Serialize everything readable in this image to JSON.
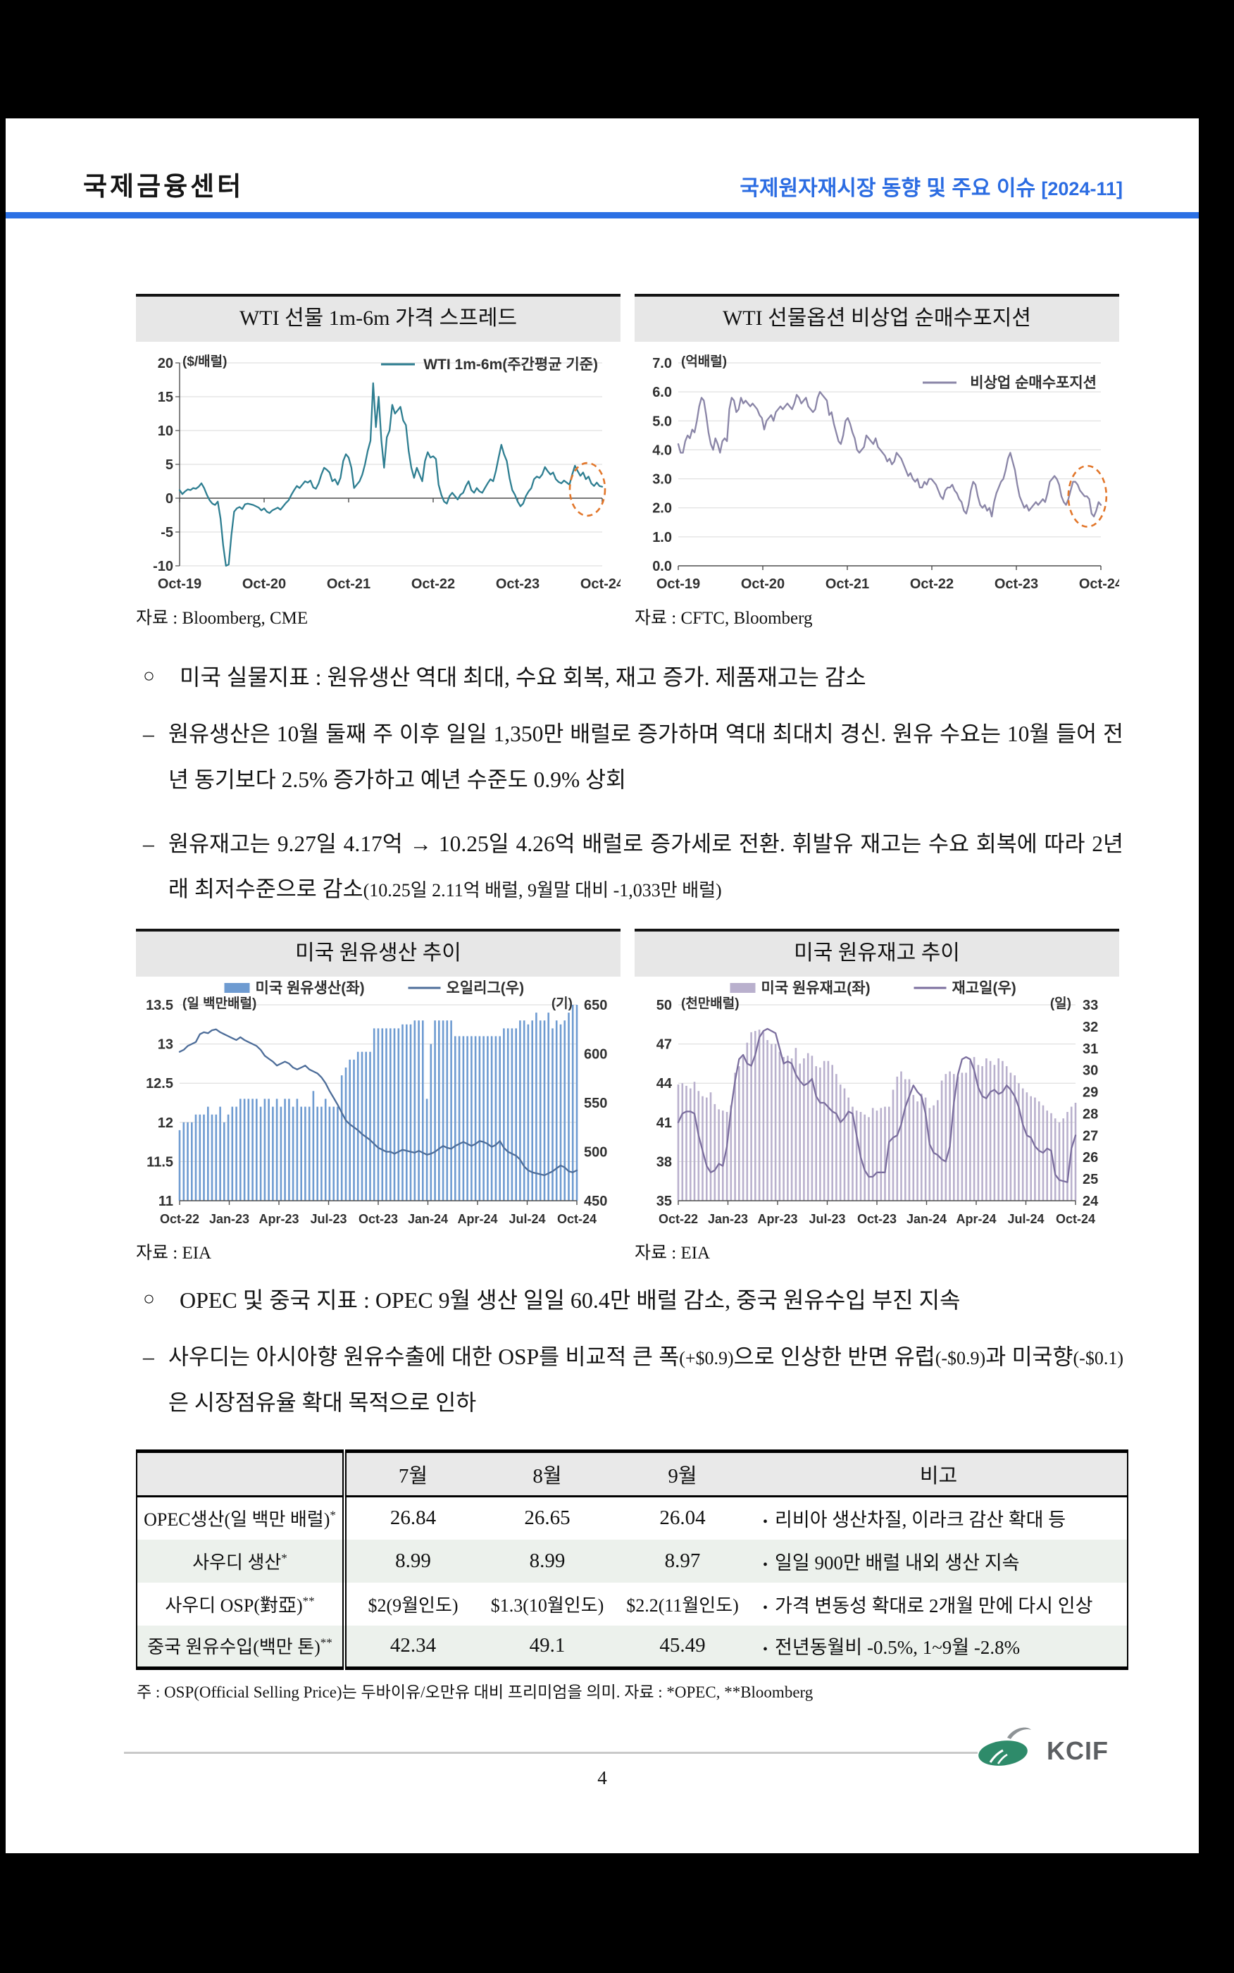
{
  "header": {
    "org": "국제금융센터",
    "doc_title": "국제원자재시장 동향 및 주요 이슈",
    "doc_issue": "[2024-11]"
  },
  "colors": {
    "accent_blue": "#2b70e4",
    "wti_line": "#2e7e91",
    "netlong_line": "#8a85a7",
    "production_bar": "#6e9bd1",
    "rig_line": "#4d6d99",
    "inventory_bar": "#b9b0cd",
    "days_line": "#7b6e9e",
    "annotation_orange": "#e2762a",
    "title_band_gray": "#e7e7e7",
    "table_alt_row": "#ecf1ec"
  },
  "markers": {
    "circle": "○",
    "dash": "–",
    "note_bullet": "•"
  },
  "sections": {
    "us": {
      "bullet": "미국 실물지표 : 원유생산 역대 최대, 수요 회복, 재고 증가. 제품재고는 감소",
      "items": [
        {
          "segments": [
            [
              "원유생산은 10월 둘째 주 이후 일일 1,350만 배럴로 증가하며 역대 최대치 경신. 원유 수요는 10월 들어 전년 동기보다 2.5% 증가하고 예년 수준도 0.9% 상회",
              "n"
            ]
          ]
        },
        {
          "segments": [
            [
              "원유재고는 9.27일 4.17억 → 10.25일 4.26억 배럴로 증가세로 전환. 휘발유 재고는 수요 회복에 따라 2년래 최저수준으로 감소",
              "n"
            ],
            [
              "(10.25일 2.11억 배럴, 9월말 대비 -1,033만 배럴)",
              "s"
            ]
          ]
        }
      ]
    },
    "opec": {
      "bullet": "OPEC 및 중국 지표 : OPEC 9월 생산 일일 60.4만 배럴 감소, 중국 원유수입 부진 지속",
      "items": [
        {
          "segments": [
            [
              "사우디는 아시아향 원유수출에 대한 OSP를 비교적 큰 폭",
              "n"
            ],
            [
              "(+$0.9)",
              "s"
            ],
            [
              "으로 인상한 반면 유럽",
              "n"
            ],
            [
              "(-$0.9)",
              "s"
            ],
            [
              "과 미국향",
              "n"
            ],
            [
              "(-$0.1)",
              "s"
            ],
            [
              "은 시장점유율 확대 목적으로 인하",
              "n"
            ]
          ]
        }
      ]
    }
  },
  "table": {
    "headers": [
      "",
      "7월",
      "8월",
      "9월",
      "비고"
    ],
    "rows": [
      {
        "label": "OPEC생산(일 백만 배럴)",
        "sup": "*",
        "values": [
          "26.84",
          "26.65",
          "26.04"
        ],
        "note": "리비아 생산차질, 이라크 감산 확대 등"
      },
      {
        "label": "사우디 생산",
        "sup": "*",
        "values": [
          "8.99",
          "8.99",
          "8.97"
        ],
        "note": "일일 900만 배럴 내외 생산 지속"
      },
      {
        "label": "사우디 OSP(對亞)",
        "sup": "**",
        "values": [
          "$2(9월인도)",
          "$1.3(10월인도)",
          "$2.2(11월인도)"
        ],
        "note": "가격 변동성 확대로 2개월 만에 다시 인상"
      },
      {
        "label": "중국 원유수입(백만 톤)",
        "sup": "**",
        "values": [
          "42.34",
          "49.1",
          "45.49"
        ],
        "note": "전년동월비 -0.5%, 1~9월 -2.8%"
      }
    ]
  },
  "footnote": "주 : OSP(Official Selling Price)는 두바이유/오만유 대비 프리미엄을 의미. 자료 : *OPEC, **Bloomberg",
  "footer": {
    "logo_text": "KCIF",
    "page_number": "4"
  },
  "chart_data": [
    {
      "type": "line",
      "name": "wti-spread-chart",
      "title": "WTI 선물 1m-6m 가격 스프레드",
      "source": "자료 : Bloomberg, CME",
      "unit_left": "($/배럴)",
      "y_left": {
        "min": -10,
        "max": 20,
        "ticks": [
          "20",
          "15",
          "10",
          "5",
          "0",
          "-5",
          "-10"
        ]
      },
      "x_ticks": [
        "Oct-19",
        "Oct-20",
        "Oct-21",
        "Oct-22",
        "Oct-23",
        "Oct-24"
      ],
      "zero_axis": true,
      "left_axis_line": true,
      "grid": true,
      "legend": {
        "label": "WTI 1m-6m(주간평균 기준)",
        "color": "#2e7e91",
        "y_offset": 2
      },
      "series": {
        "name": "WTI 1m-6m(주간평균 기준)",
        "color": "#2e7e91",
        "values": [
          1.2,
          0.6,
          1.0,
          1.3,
          1.2,
          1.5,
          1.4,
          1.7,
          2.2,
          1.5,
          0.5,
          -0.3,
          -0.8,
          -1.0,
          -0.5,
          -3.0,
          -7.0,
          -10.3,
          -9.8,
          -5.5,
          -2.0,
          -1.5,
          -1.3,
          -1.6,
          -0.9,
          -0.8,
          -0.9,
          -1.0,
          -1.2,
          -1.4,
          -1.8,
          -1.5,
          -2.0,
          -2.2,
          -1.8,
          -1.6,
          -1.4,
          -1.7,
          -1.2,
          -0.7,
          -0.3,
          0.5,
          1.2,
          1.8,
          1.5,
          2.0,
          2.5,
          2.3,
          2.6,
          1.6,
          1.4,
          2.2,
          3.5,
          4.5,
          4.2,
          3.8,
          2.5,
          2.8,
          2.0,
          3.0,
          5.5,
          6.5,
          6.0,
          4.5,
          1.5,
          2.0,
          2.5,
          3.5,
          5.0,
          7.0,
          8.5,
          17.0,
          10.5,
          15.0,
          8.5,
          4.5,
          9.0,
          10.0,
          13.8,
          12.5,
          13.0,
          13.5,
          11.5,
          10.8,
          7.0,
          4.5,
          3.0,
          4.5,
          3.5,
          2.5,
          5.5,
          6.8,
          6.0,
          6.2,
          5.8,
          2.0,
          0.5,
          -0.5,
          -0.8,
          0.3,
          0.8,
          0.3,
          -0.2,
          0.5,
          0.8,
          1.8,
          2.5,
          1.2,
          0.8,
          1.5,
          1.0,
          0.8,
          1.5,
          2.2,
          2.8,
          2.5,
          4.0,
          6.0,
          7.9,
          6.5,
          5.5,
          3.0,
          1.2,
          0.5,
          -0.5,
          -1.2,
          -0.8,
          0.3,
          1.0,
          1.5,
          2.8,
          3.2,
          3.0,
          3.5,
          4.6,
          4.0,
          3.5,
          3.8,
          2.8,
          2.4,
          2.2,
          2.6,
          2.3,
          2.0,
          3.5,
          4.8,
          4.0,
          3.3,
          3.8,
          2.8,
          3.2,
          2.2,
          1.8,
          2.3,
          1.8,
          1.7
        ]
      },
      "ellipse": {
        "cx_frac": 0.965,
        "cy_val": 1.3,
        "rx": 25,
        "ry_val": 3.9,
        "color": "#e2762a"
      }
    },
    {
      "type": "line",
      "name": "wti-netlong-chart",
      "title": "WTI 선물옵션 비상업 순매수포지션",
      "source": "자료 : CFTC, Bloomberg",
      "unit_left": "(억배럴)",
      "y_left": {
        "min": 0,
        "max": 7,
        "ticks": [
          "7.0",
          "6.0",
          "5.0",
          "4.0",
          "3.0",
          "2.0",
          "1.0",
          "0.0"
        ]
      },
      "x_ticks": [
        "Oct-19",
        "Oct-20",
        "Oct-21",
        "Oct-22",
        "Oct-23",
        "Oct-24"
      ],
      "bottom_axis": true,
      "grid": true,
      "legend": {
        "label": "비상업 순매수포지션",
        "color": "#8a85a7",
        "y_offset": 28
      },
      "series": {
        "name": "비상업 순매수포지션",
        "color": "#8a85a7",
        "values": [
          4.2,
          3.9,
          3.9,
          4.3,
          4.5,
          4.4,
          4.7,
          4.6,
          5.0,
          5.5,
          5.8,
          5.7,
          5.2,
          4.6,
          4.2,
          4.0,
          4.4,
          4.2,
          3.9,
          4.3,
          4.4,
          4.3,
          5.4,
          5.8,
          5.7,
          5.3,
          5.4,
          5.8,
          5.6,
          5.7,
          5.6,
          5.5,
          5.6,
          5.5,
          5.4,
          5.2,
          5.1,
          4.7,
          5.0,
          5.1,
          5.2,
          5.0,
          5.3,
          5.4,
          5.5,
          5.4,
          5.5,
          5.6,
          5.5,
          5.4,
          5.6,
          5.9,
          5.8,
          5.6,
          5.7,
          5.8,
          5.5,
          5.4,
          5.3,
          5.4,
          5.8,
          6.0,
          5.9,
          5.8,
          5.7,
          5.2,
          5.3,
          4.9,
          4.6,
          4.3,
          4.2,
          4.5,
          5.0,
          5.1,
          4.9,
          4.6,
          4.4,
          4.0,
          3.9,
          4.0,
          4.1,
          4.5,
          4.4,
          4.3,
          4.2,
          4.4,
          4.1,
          4.0,
          3.9,
          3.8,
          3.6,
          3.7,
          3.5,
          3.6,
          3.9,
          3.8,
          3.7,
          3.5,
          3.3,
          3.1,
          3.2,
          3.0,
          2.9,
          3.0,
          2.7,
          2.7,
          2.9,
          2.8,
          3.0,
          3.0,
          2.9,
          2.8,
          2.6,
          2.4,
          2.3,
          2.6,
          2.7,
          2.7,
          2.8,
          2.6,
          2.5,
          2.3,
          2.2,
          1.9,
          1.8,
          2.1,
          2.6,
          2.9,
          2.8,
          2.4,
          2.1,
          2.0,
          2.1,
          1.9,
          2.0,
          1.7,
          2.2,
          2.5,
          2.7,
          2.9,
          3.0,
          3.3,
          3.7,
          3.9,
          3.6,
          3.3,
          2.8,
          2.4,
          2.2,
          2.0,
          2.1,
          1.9,
          2.0,
          2.1,
          2.2,
          2.1,
          2.2,
          2.3,
          2.2,
          2.5,
          2.9,
          3.0,
          3.1,
          3.0,
          2.8,
          2.4,
          2.2,
          2.1,
          2.3,
          2.6,
          2.9,
          2.9,
          2.8,
          2.6,
          2.5,
          2.4,
          2.4,
          2.3,
          1.8,
          1.7,
          1.9,
          2.2,
          2.1
        ]
      },
      "ellipse": {
        "cx_frac": 0.968,
        "cy_val": 2.4,
        "rx": 27,
        "ry_val": 1.05,
        "color": "#e2762a"
      }
    },
    {
      "type": "bar+line",
      "name": "us-production-chart",
      "title": "미국 원유생산 추이",
      "source": "자료 : EIA",
      "unit_left": "(일 백만배럴)",
      "unit_right": "(기)",
      "y_left": {
        "min": 11,
        "max": 13.5,
        "ticks": [
          "13.5",
          "13",
          "12.5",
          "12",
          "11.5",
          "11"
        ]
      },
      "y_right": {
        "min": 450,
        "max": 650,
        "ticks": [
          "650",
          "600",
          "550",
          "500",
          "450"
        ]
      },
      "x_ticks": [
        "Oct-22",
        "Jan-23",
        "Apr-23",
        "Jul-23",
        "Oct-23",
        "Jan-24",
        "Apr-24",
        "Jul-24",
        "Oct-24"
      ],
      "bottom_axis": true,
      "grid": true,
      "bars": {
        "name": "미국 원유생산(좌)",
        "color": "#6e9bd1",
        "values": [
          11.9,
          12.0,
          12.0,
          12.0,
          12.1,
          12.1,
          12.1,
          12.2,
          12.1,
          12.1,
          12.2,
          12.0,
          12.1,
          12.2,
          12.2,
          12.3,
          12.3,
          12.3,
          12.3,
          12.3,
          12.2,
          12.3,
          12.3,
          12.2,
          12.3,
          12.2,
          12.3,
          12.3,
          12.2,
          12.3,
          12.2,
          12.2,
          12.2,
          12.4,
          12.2,
          12.2,
          12.3,
          12.2,
          12.2,
          12.2,
          12.6,
          12.7,
          12.8,
          12.8,
          12.9,
          12.9,
          12.9,
          12.9,
          13.2,
          13.2,
          13.2,
          13.2,
          13.2,
          13.2,
          13.2,
          13.25,
          13.25,
          13.25,
          13.3,
          13.3,
          13.3,
          12.3,
          13.0,
          13.3,
          13.3,
          13.3,
          13.3,
          13.3,
          13.1,
          13.1,
          13.1,
          13.1,
          13.1,
          13.1,
          13.1,
          13.1,
          13.1,
          13.1,
          13.1,
          13.1,
          13.2,
          13.2,
          13.2,
          13.2,
          13.3,
          13.3,
          13.25,
          13.3,
          13.4,
          13.3,
          13.3,
          13.4,
          13.2,
          13.3,
          13.25,
          13.3,
          13.4,
          13.5,
          13.5
        ]
      },
      "line": {
        "name": "오일리그(우)",
        "color": "#4d6d99",
        "values": [
          602,
          604,
          608,
          610,
          612,
          620,
          622,
          621,
          624,
          625,
          622,
          620,
          618,
          616,
          614,
          617,
          614,
          612,
          610,
          608,
          604,
          598,
          595,
          592,
          588,
          590,
          592,
          590,
          586,
          584,
          586,
          588,
          584,
          582,
          580,
          576,
          570,
          562,
          555,
          548,
          540,
          532,
          528,
          525,
          522,
          518,
          515,
          512,
          508,
          504,
          502,
          500,
          500,
          498,
          500,
          502,
          501,
          500,
          499,
          501,
          499,
          497,
          498,
          500,
          503,
          506,
          504,
          503,
          506,
          508,
          510,
          508,
          506,
          508,
          511,
          510,
          508,
          505,
          507,
          511,
          504,
          500,
          498,
          496,
          492,
          485,
          481,
          479,
          478,
          477,
          476,
          478,
          480,
          483,
          486,
          484,
          480,
          479,
          481
        ]
      }
    },
    {
      "type": "bar+line",
      "name": "us-inventory-chart",
      "title": "미국 원유재고 추이",
      "source": "자료 : EIA",
      "unit_left": "(천만배럴)",
      "unit_right": "(일)",
      "y_left": {
        "min": 35,
        "max": 50,
        "ticks": [
          "50",
          "47",
          "44",
          "41",
          "38",
          "35"
        ]
      },
      "y_right": {
        "min": 24,
        "max": 33,
        "ticks": [
          "33",
          "32",
          "31",
          "30",
          "29",
          "28",
          "27",
          "26",
          "25",
          "24"
        ]
      },
      "x_ticks": [
        "Oct-22",
        "Jan-23",
        "Apr-23",
        "Jul-23",
        "Oct-23",
        "Jan-24",
        "Apr-24",
        "Jul-24",
        "Oct-24"
      ],
      "bottom_axis": true,
      "grid": true,
      "bars": {
        "name": "미국 원유재고(좌)",
        "color": "#b9b0cd",
        "values": [
          43.9,
          44.0,
          43.8,
          43.6,
          44.1,
          43.4,
          43.0,
          42.9,
          43.3,
          42.4,
          42.0,
          41.9,
          41.8,
          42.3,
          44.8,
          45.3,
          46.0,
          47.1,
          47.9,
          48.0,
          48.1,
          47.9,
          47.3,
          47.0,
          47.0,
          46.4,
          46.0,
          46.1,
          45.9,
          46.7,
          45.5,
          45.9,
          46.3,
          46.1,
          45.3,
          45.2,
          45.7,
          45.7,
          45.4,
          44.7,
          43.9,
          43.6,
          42.9,
          42.2,
          41.9,
          41.8,
          41.6,
          41.4,
          42.1,
          41.9,
          42.1,
          42.2,
          42.2,
          43.5,
          44.5,
          44.9,
          44.3,
          44.3,
          43.1,
          42.6,
          43.2,
          42.9,
          42.1,
          42.3,
          42.7,
          44.2,
          44.7,
          44.9,
          44.7,
          44.5,
          44.8,
          44.8,
          45.7,
          46.0,
          45.4,
          45.3,
          45.9,
          45.7,
          45.4,
          45.9,
          45.7,
          45.3,
          44.8,
          44.6,
          44.0,
          43.6,
          43.3,
          43.0,
          42.9,
          42.6,
          42.3,
          41.9,
          41.7,
          41.3,
          41.0,
          41.3,
          41.8,
          42.2,
          42.5
        ]
      },
      "line": {
        "name": "재고일(우)",
        "color": "#7b6e9e",
        "values": [
          27.6,
          28.0,
          28.1,
          28.1,
          28.0,
          27.0,
          26.3,
          25.6,
          25.3,
          25.4,
          25.7,
          25.6,
          26.5,
          28.2,
          29.5,
          30.5,
          30.7,
          30.3,
          30.2,
          30.7,
          31.5,
          31.8,
          31.9,
          31.8,
          31.7,
          31.0,
          30.3,
          30.4,
          30.3,
          29.8,
          29.5,
          29.3,
          29.4,
          29.6,
          28.8,
          28.5,
          28.5,
          28.3,
          28.1,
          28.0,
          27.6,
          27.8,
          28.1,
          28.0,
          27.0,
          26.0,
          25.4,
          25.1,
          25.1,
          25.3,
          25.3,
          25.3,
          26.7,
          26.9,
          27.0,
          27.5,
          28.3,
          28.8,
          29.3,
          29.0,
          28.8,
          28.0,
          26.6,
          26.2,
          26.1,
          25.9,
          25.8,
          26.5,
          28.5,
          29.8,
          30.5,
          30.6,
          30.5,
          30.0,
          29.2,
          28.8,
          28.7,
          29.0,
          29.1,
          28.9,
          29.0,
          29.3,
          29.1,
          28.8,
          28.3,
          27.5,
          27.0,
          26.9,
          26.5,
          26.3,
          26.2,
          26.4,
          26.3,
          25.2,
          24.95,
          24.9,
          24.85,
          26.4,
          27.0
        ]
      }
    }
  ]
}
